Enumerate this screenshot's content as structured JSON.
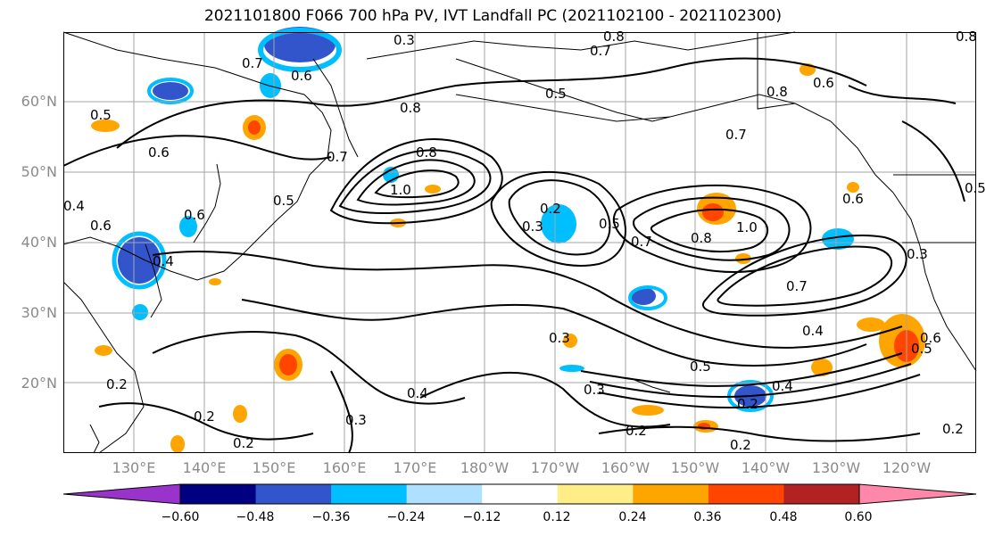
{
  "title": "2021101800 F066 700 hPa PV, IVT Landfall PC (2021102100 - 2021102300)",
  "lat_labels": [
    "20°N",
    "30°N",
    "40°N",
    "50°N",
    "60°N"
  ],
  "lon_labels": [
    "130°E",
    "140°E",
    "150°E",
    "160°E",
    "170°E",
    "180°W",
    "170°W",
    "160°W",
    "150°W",
    "140°W",
    "130°W",
    "120°W"
  ],
  "colorbar": {
    "ticks": [
      "−0.60",
      "−0.48",
      "−0.36",
      "−0.24",
      "−0.12",
      "0.12",
      "0.24",
      "0.36",
      "0.48",
      "0.60"
    ],
    "colors": [
      "#9933cc",
      "#000080",
      "#3355cc",
      "#00bfff",
      "#b0e0ff",
      "#ffffff",
      "#ffee88",
      "#ffa500",
      "#ff4500",
      "#b22222",
      "#ff88aa"
    ]
  },
  "contour_labels": [
    "0.3",
    "0.8",
    "0.7",
    "0.6",
    "0.8",
    "0.7",
    "0.8",
    "0.5",
    "0.6",
    "0.7",
    "0.8",
    "0.5",
    "0.6",
    "0.4",
    "0.6",
    "0.5",
    "0.7",
    "0.8",
    "1.0",
    "0.5",
    "0.2",
    "0.3",
    "0.5",
    "0.4",
    "0.7",
    "0.8",
    "1.0",
    "0.7",
    "0.3",
    "0.4",
    "0.3",
    "0.5",
    "0.3",
    "0.4",
    "0.2",
    "0.4",
    "0.2",
    "0.3",
    "0.2",
    "0.2",
    "0.2",
    "0.2",
    "0.5",
    "0.6",
    "0.6",
    "0.2",
    "0.6"
  ]
}
